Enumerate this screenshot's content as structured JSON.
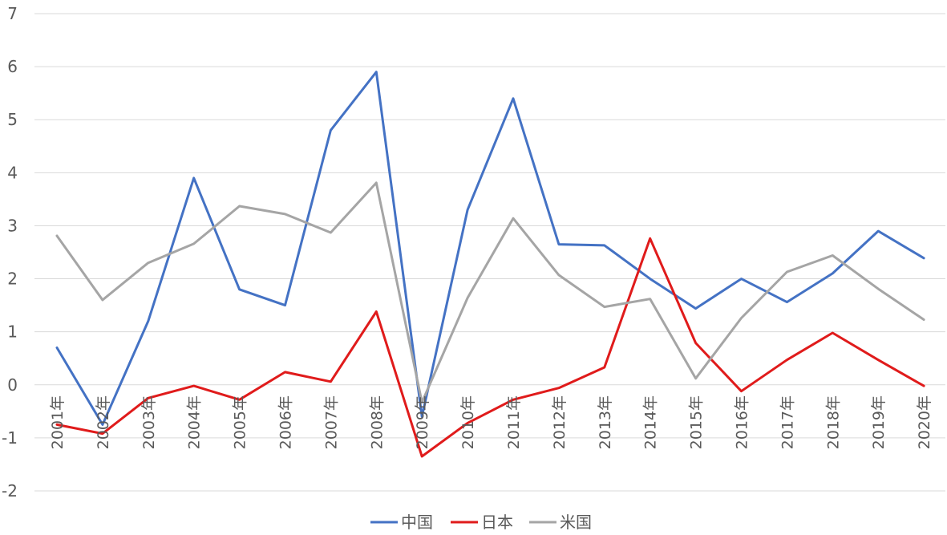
{
  "chart_data": {
    "type": "line",
    "categories": [
      "2001年",
      "2002年",
      "2003年",
      "2004年",
      "2005年",
      "2006年",
      "2007年",
      "2008年",
      "2009年",
      "2010年",
      "2011年",
      "2012年",
      "2013年",
      "2014年",
      "2015年",
      "2016年",
      "2017年",
      "2018年",
      "2019年",
      "2020年"
    ],
    "ylim": [
      -2,
      7
    ],
    "yticks": [
      -2,
      -1,
      0,
      1,
      2,
      3,
      4,
      5,
      6,
      7
    ],
    "grid": true,
    "legend_position": "bottom",
    "series": [
      {
        "name": "中国",
        "color": "#4472c4",
        "values": [
          0.7,
          -0.75,
          1.2,
          3.9,
          1.8,
          1.5,
          4.8,
          5.9,
          -0.6,
          3.3,
          5.4,
          2.65,
          2.63,
          2.0,
          1.44,
          2.0,
          1.56,
          2.1,
          2.9,
          2.39
        ]
      },
      {
        "name": "日本",
        "color": "#e01b1b",
        "values": [
          -0.75,
          -0.92,
          -0.25,
          -0.02,
          -0.28,
          0.24,
          0.06,
          1.38,
          -1.35,
          -0.72,
          -0.28,
          -0.06,
          0.33,
          2.76,
          0.79,
          -0.12,
          0.47,
          0.98,
          0.47,
          -0.02
        ]
      },
      {
        "name": "米国",
        "color": "#a5a5a5",
        "values": [
          2.81,
          1.6,
          2.3,
          2.66,
          3.37,
          3.22,
          2.87,
          3.81,
          -0.33,
          1.64,
          3.14,
          2.07,
          1.47,
          1.62,
          0.12,
          1.26,
          2.13,
          2.44,
          1.81,
          1.23
        ]
      }
    ]
  }
}
